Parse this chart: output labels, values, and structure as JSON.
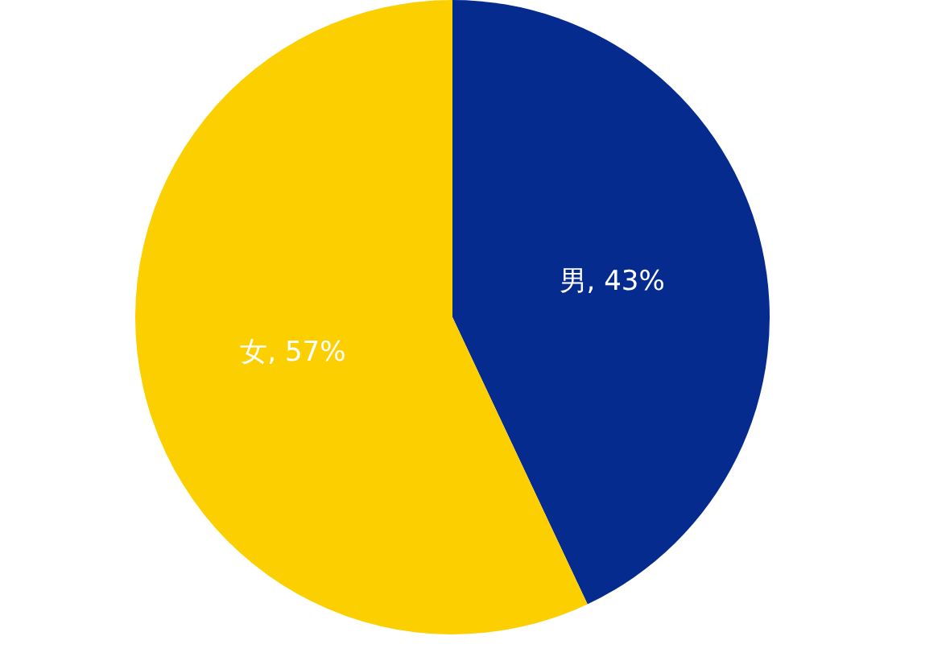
{
  "chart_data": {
    "type": "pie",
    "categories": [
      "男",
      "女"
    ],
    "values": [
      43,
      57
    ],
    "colors": [
      "#062b8f",
      "#fccf00"
    ],
    "value_labels": [
      "43%",
      "57%"
    ],
    "legend": false
  }
}
